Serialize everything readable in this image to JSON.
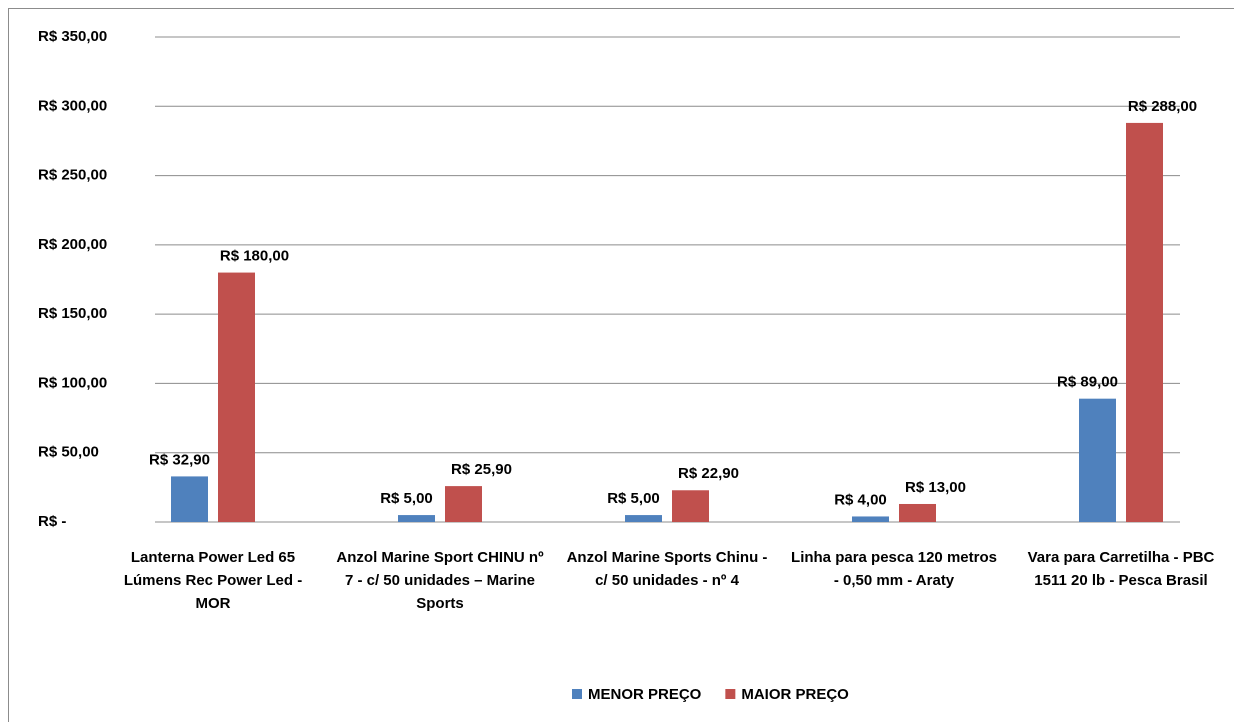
{
  "chart_data": {
    "type": "bar",
    "categories": [
      "Lanterna Power Led 65 Lúmens Rec Power Led - MOR",
      "Anzol Marine Sport CHINU nº 7 - c/ 50 unidades – Marine Sports",
      "Anzol Marine Sports Chinu - c/ 50 unidades - nº 4",
      "Linha para pesca  120 metros - 0,50 mm - Araty",
      "Vara para Carretilha - PBC 1511 20 lb - Pesca Brasil"
    ],
    "series": [
      {
        "name": "MENOR PREÇO",
        "color": "#4f81bd",
        "values": [
          32.9,
          5,
          5,
          4,
          89
        ],
        "value_labels": [
          "R$ 32,90",
          "R$ 5,00",
          "R$ 5,00",
          "R$ 4,00",
          "R$ 89,00"
        ]
      },
      {
        "name": "MAIOR PREÇO",
        "color": "#c0504d",
        "values": [
          180,
          25.9,
          22.9,
          13,
          288
        ],
        "value_labels": [
          "R$ 180,00",
          "R$ 25,90",
          "R$ 22,90",
          "R$ 13,00",
          "R$ 288,00"
        ]
      }
    ],
    "ylim": [
      0,
      350
    ],
    "yticks": [
      {
        "value": 0,
        "label": "R$ -"
      },
      {
        "value": 50,
        "label": "R$ 50,00"
      },
      {
        "value": 100,
        "label": "R$ 100,00"
      },
      {
        "value": 150,
        "label": "R$ 150,00"
      },
      {
        "value": 200,
        "label": "R$ 200,00"
      },
      {
        "value": 250,
        "label": "R$ 250,00"
      },
      {
        "value": 300,
        "label": "R$ 300,00"
      },
      {
        "value": 350,
        "label": "R$ 350,00"
      }
    ],
    "grid": true,
    "legend": "bottom"
  }
}
